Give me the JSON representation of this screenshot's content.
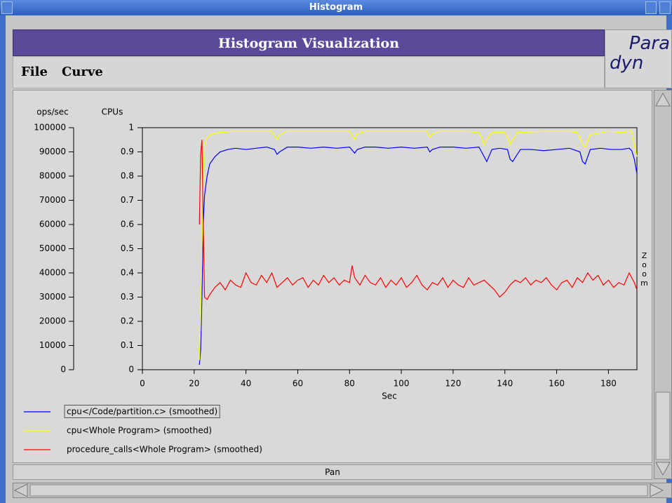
{
  "window_title": "Histogram",
  "header": "Histogram Visualization",
  "menu": [
    "File",
    "Curve"
  ],
  "logo": [
    "Para",
    "dyn"
  ],
  "zoom_label": "Zoom",
  "pan_label": "Pan",
  "chart_data": {
    "type": "line",
    "xlabel": "Sec",
    "ylabel": "CPUs",
    "y2label": "ops/sec",
    "xlim": [
      0,
      191
    ],
    "xticks": [
      0,
      20,
      40,
      60,
      80,
      100,
      120,
      140,
      160,
      180
    ],
    "ylim": [
      0,
      1
    ],
    "yticks": [
      0,
      0.1,
      0.2,
      0.3,
      0.4,
      0.5,
      0.6,
      0.7,
      0.8,
      0.9,
      1
    ],
    "y2lim": [
      0,
      100000
    ],
    "y2ticks": [
      0,
      10000,
      20000,
      30000,
      40000,
      50000,
      60000,
      70000,
      80000,
      90000,
      100000
    ],
    "grid": false,
    "series": [
      {
        "name": "cpu</Code/partition.c> (smoothed)",
        "color": "#0000ff",
        "x": [
          22,
          22.5,
          23,
          23.5,
          24,
          25,
          26,
          28,
          30,
          33,
          36,
          40,
          44,
          48,
          51,
          52,
          53,
          56,
          60,
          65,
          70,
          75,
          80,
          82,
          83,
          86,
          90,
          95,
          100,
          105,
          110,
          111,
          112,
          115,
          120,
          125,
          130,
          132,
          133,
          135,
          138,
          141,
          142,
          143,
          146,
          150,
          155,
          160,
          165,
          169,
          170,
          171,
          173,
          177,
          181,
          185,
          188,
          189,
          190,
          191
        ],
        "values": [
          0.02,
          0.08,
          0.3,
          0.6,
          0.72,
          0.8,
          0.85,
          0.88,
          0.9,
          0.91,
          0.915,
          0.91,
          0.915,
          0.92,
          0.91,
          0.89,
          0.9,
          0.92,
          0.92,
          0.915,
          0.92,
          0.915,
          0.92,
          0.895,
          0.91,
          0.92,
          0.92,
          0.915,
          0.92,
          0.915,
          0.92,
          0.9,
          0.91,
          0.92,
          0.92,
          0.915,
          0.92,
          0.88,
          0.86,
          0.91,
          0.915,
          0.91,
          0.87,
          0.86,
          0.91,
          0.91,
          0.905,
          0.91,
          0.915,
          0.9,
          0.86,
          0.85,
          0.91,
          0.915,
          0.91,
          0.91,
          0.915,
          0.905,
          0.87,
          0.81
        ]
      },
      {
        "name": "cpu<Whole Program> (smoothed)",
        "color": "#ffff00",
        "x": [
          22,
          22.5,
          23,
          23.5,
          24,
          25,
          27,
          30,
          35,
          40,
          45,
          50,
          51,
          52,
          53,
          56,
          60,
          70,
          80,
          82,
          83,
          86,
          95,
          105,
          110,
          111,
          112,
          115,
          125,
          130,
          131,
          132,
          133,
          135,
          140,
          141,
          142,
          143,
          145,
          155,
          165,
          168,
          169,
          170,
          171,
          173,
          180,
          186,
          188,
          189,
          190,
          191
        ],
        "values": [
          0.04,
          0.2,
          0.5,
          0.8,
          0.93,
          0.96,
          0.975,
          0.98,
          0.985,
          0.985,
          0.985,
          0.985,
          0.97,
          0.95,
          0.97,
          0.985,
          0.985,
          0.985,
          0.985,
          0.95,
          0.975,
          0.985,
          0.985,
          0.985,
          0.985,
          0.96,
          0.975,
          0.985,
          0.985,
          0.98,
          0.96,
          0.93,
          0.95,
          0.98,
          0.98,
          0.96,
          0.93,
          0.95,
          0.98,
          0.985,
          0.985,
          0.98,
          0.96,
          0.93,
          0.92,
          0.97,
          0.985,
          0.98,
          0.985,
          0.985,
          0.93,
          0.88
        ]
      },
      {
        "name": "procedure_calls<Whole Program> (smoothed)",
        "color": "#ff0000",
        "axis": "y2",
        "x": [
          22,
          22.5,
          23,
          23.5,
          24,
          25,
          26,
          28,
          30,
          32,
          34,
          36,
          38,
          40,
          42,
          44,
          46,
          48,
          50,
          52,
          54,
          56,
          58,
          60,
          62,
          64,
          66,
          68,
          70,
          72,
          74,
          76,
          78,
          80,
          81,
          82,
          84,
          86,
          88,
          90,
          92,
          94,
          96,
          98,
          100,
          102,
          104,
          106,
          108,
          110,
          112,
          114,
          116,
          118,
          120,
          122,
          124,
          126,
          128,
          130,
          132,
          134,
          136,
          138,
          140,
          142,
          144,
          146,
          148,
          150,
          152,
          154,
          156,
          158,
          160,
          162,
          164,
          166,
          168,
          170,
          172,
          174,
          176,
          178,
          180,
          182,
          184,
          186,
          188,
          190,
          191
        ],
        "values": [
          60000,
          89000,
          95000,
          60000,
          30000,
          29000,
          31000,
          34000,
          36000,
          33000,
          37000,
          35000,
          34000,
          40000,
          36000,
          35000,
          39000,
          36000,
          40000,
          34000,
          36000,
          38000,
          35000,
          37000,
          38000,
          34000,
          37000,
          35000,
          39000,
          36000,
          38000,
          35000,
          37000,
          36000,
          43000,
          38000,
          35000,
          39000,
          36000,
          35000,
          38000,
          34000,
          37000,
          35000,
          38000,
          34000,
          36000,
          39000,
          35000,
          33000,
          36000,
          35000,
          38000,
          34000,
          37000,
          35000,
          34000,
          38000,
          35000,
          36000,
          37000,
          35000,
          33000,
          30000,
          32000,
          35000,
          37000,
          36000,
          38000,
          35000,
          37000,
          36000,
          38000,
          35000,
          33000,
          36000,
          37000,
          34000,
          38000,
          36000,
          40000,
          37000,
          39000,
          35000,
          37000,
          34000,
          36000,
          35000,
          40000,
          36000,
          33000
        ]
      }
    ]
  }
}
